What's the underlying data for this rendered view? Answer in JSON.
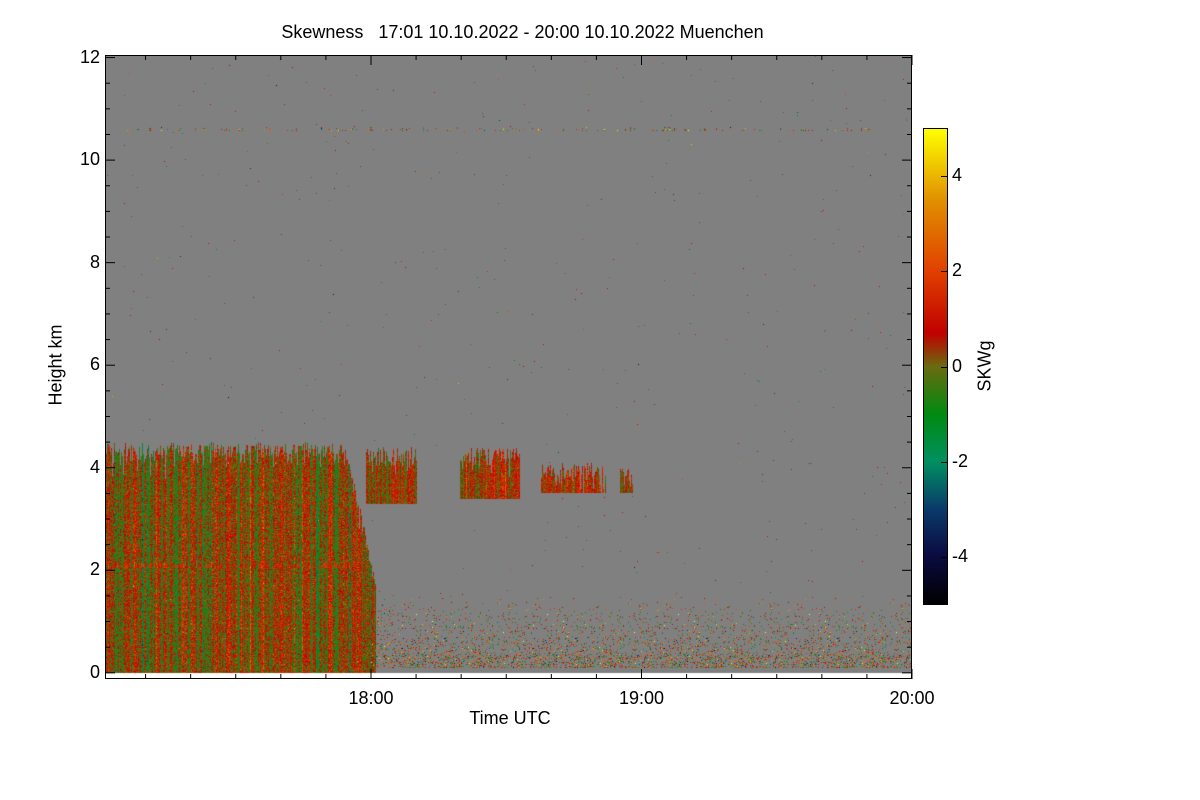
{
  "chart_data": {
    "type": "heatmap",
    "title": "Skewness   17:01 10.10.2022 - 20:00 10.10.2022 Muenchen",
    "xlabel": "Time UTC",
    "ylabel": "Height km",
    "x_unit": "hours UTC",
    "xlim": [
      17.0167,
      20.0
    ],
    "ylim": [
      -0.12,
      12.05
    ],
    "xticks": [
      {
        "value": 18.0,
        "label": "18:00"
      },
      {
        "value": 19.0,
        "label": "19:00"
      },
      {
        "value": 20.0,
        "label": "20:00"
      }
    ],
    "yticks": [
      {
        "value": 0,
        "label": "0"
      },
      {
        "value": 2,
        "label": "2"
      },
      {
        "value": 4,
        "label": "4"
      },
      {
        "value": 6,
        "label": "6"
      },
      {
        "value": 8,
        "label": "8"
      },
      {
        "value": 10,
        "label": "10"
      },
      {
        "value": 12,
        "label": "12"
      }
    ],
    "background_value": "no data",
    "colorbar": {
      "label": "SKWg",
      "range": [
        -5,
        5
      ],
      "ticks": [
        {
          "value": 4,
          "label": "4"
        },
        {
          "value": 2,
          "label": "2"
        },
        {
          "value": 0,
          "label": "0"
        },
        {
          "value": -2,
          "label": "-2"
        },
        {
          "value": -4,
          "label": "-4"
        }
      ],
      "stops": [
        {
          "value": -5,
          "color": "#000000"
        },
        {
          "value": -4,
          "color": "#0a0a40"
        },
        {
          "value": -3,
          "color": "#0a3a6a"
        },
        {
          "value": -2,
          "color": "#009060"
        },
        {
          "value": -1,
          "color": "#008a10"
        },
        {
          "value": 0,
          "color": "#6a6a10"
        },
        {
          "value": 0.7,
          "color": "#c00000"
        },
        {
          "value": 2,
          "color": "#e04000"
        },
        {
          "value": 3.5,
          "color": "#e09000"
        },
        {
          "value": 5,
          "color": "#ffff00"
        }
      ]
    },
    "regions": [
      {
        "name": "boundary layer / cloud mass",
        "t": [
          17.0167,
          18.02
        ],
        "z": [
          0,
          4.5
        ],
        "mean": 0.2,
        "spread": 1.1
      },
      {
        "name": "layer at 2.1 km",
        "t": [
          17.0167,
          17.95
        ],
        "z": [
          2.05,
          2.2
        ],
        "mean": 1.5,
        "spread": 0.4
      },
      {
        "name": "cloud patch",
        "t": [
          17.98,
          18.17
        ],
        "z": [
          3.3,
          4.4
        ],
        "mean": 0.4,
        "spread": 0.9
      },
      {
        "name": "cloud patch",
        "t": [
          18.33,
          18.55
        ],
        "z": [
          3.4,
          4.4
        ],
        "mean": 0.6,
        "spread": 0.9
      },
      {
        "name": "cloud patch",
        "t": [
          18.63,
          18.87
        ],
        "z": [
          3.5,
          4.1
        ],
        "mean": 0.6,
        "spread": 0.9
      },
      {
        "name": "cloud patch",
        "t": [
          18.92,
          18.97
        ],
        "z": [
          3.5,
          4.0
        ],
        "mean": 0.0,
        "spread": 0.8
      },
      {
        "name": "scattered low returns",
        "t": [
          18.0,
          20.0
        ],
        "z": [
          0.1,
          1.5
        ],
        "mean": 0.5,
        "spread": 1.8
      },
      {
        "name": "thin layer at 10.6 km",
        "t": [
          17.0167,
          19.9
        ],
        "z": [
          10.57,
          10.65
        ],
        "mean": 0.8,
        "spread": 2.0
      }
    ]
  }
}
